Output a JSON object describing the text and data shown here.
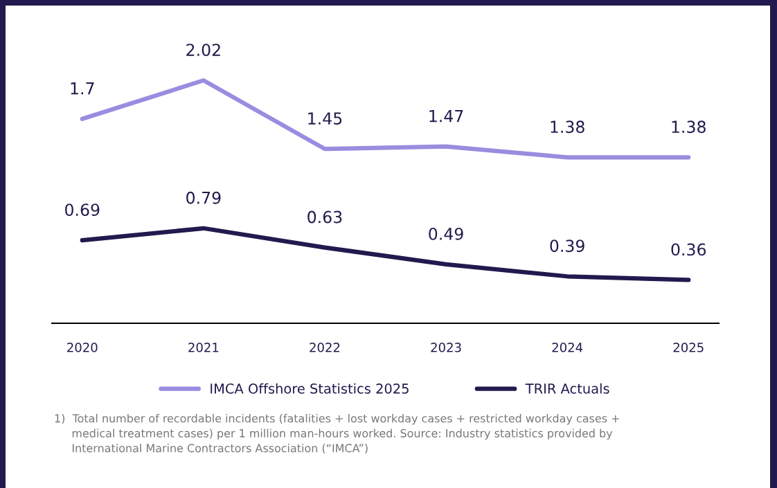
{
  "chart_data": {
    "type": "line",
    "categories": [
      "2020",
      "2021",
      "2022",
      "2023",
      "2024",
      "2025"
    ],
    "series": [
      {
        "name": "IMCA Offshore Statistics 2025",
        "color": "#9b8ce0",
        "values": [
          1.7,
          2.02,
          1.45,
          1.47,
          1.38,
          1.38
        ]
      },
      {
        "name": "TRIR Actuals",
        "color": "#221a4e",
        "values": [
          0.69,
          0.79,
          0.63,
          0.49,
          0.39,
          0.36
        ]
      }
    ],
    "tick_labels": "x",
    "data_labels": true,
    "legend": "bottom",
    "grid": false,
    "marker": "none",
    "line_style": "solid",
    "annotations": [
      "1)  Total number of recordable incidents (fatalities + lost workday cases + restricted workday cases +\n     medical treatment cases) per 1 million man-hours worked. Source: Industry statistics provided by\n     International Marine Contractors Association (“IMCA”)"
    ]
  }
}
